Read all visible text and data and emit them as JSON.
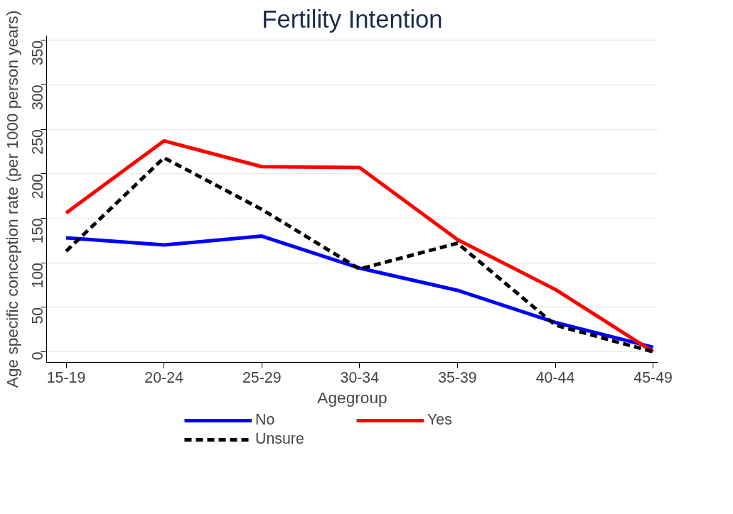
{
  "chart_data": {
    "type": "line",
    "title": "Fertility Intention",
    "xlabel": "Agegroup",
    "ylabel": "Age specific conception rate (per 1000 person years)",
    "categories": [
      "15-19",
      "20-24",
      "25-29",
      "30-34",
      "35-39",
      "40-44",
      "45-49"
    ],
    "series": [
      {
        "name": "No",
        "color": "#0000ff",
        "values": [
          128,
          120,
          130,
          94,
          69,
          33,
          5
        ],
        "line_style": "solid"
      },
      {
        "name": "Yes",
        "color": "#ff0000",
        "values": [
          156,
          237,
          208,
          207,
          126,
          70,
          0
        ],
        "line_style": "solid"
      },
      {
        "name": "Unsure",
        "color": "#000000",
        "values": [
          113,
          218,
          160,
          93,
          122,
          30,
          0
        ],
        "line_style": "dashed"
      }
    ],
    "ylim": [
      -12,
      355
    ],
    "yticks": [
      0,
      50,
      100,
      150,
      200,
      250,
      300,
      350
    ],
    "grid": "y",
    "legend": "bottom",
    "marker": "none"
  }
}
